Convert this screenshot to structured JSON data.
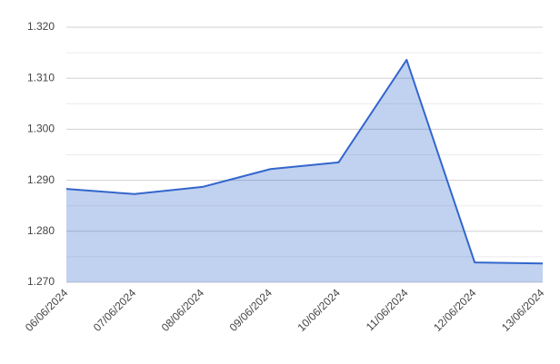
{
  "chart_data": {
    "type": "area",
    "categories": [
      "06/06/2024",
      "07/06/2024",
      "08/06/2024",
      "09/06/2024",
      "10/06/2024",
      "11/06/2024",
      "12/06/2024",
      "13/06/2024"
    ],
    "series": [
      {
        "color": "#3366cc",
        "values": [
          1.2883,
          1.2873,
          1.2887,
          1.2922,
          1.2935,
          1.3136,
          1.2739,
          1.2737
        ]
      }
    ],
    "ylim": [
      1.27,
      1.32
    ],
    "yticks": [
      {
        "value": 1.27,
        "label": "1.270"
      },
      {
        "value": 1.28,
        "label": "1.280"
      },
      {
        "value": 1.29,
        "label": "1.290"
      },
      {
        "value": 1.3,
        "label": "1.300"
      },
      {
        "value": 1.31,
        "label": "1.310"
      },
      {
        "value": 1.32,
        "label": "1.320"
      }
    ],
    "grid": true
  }
}
